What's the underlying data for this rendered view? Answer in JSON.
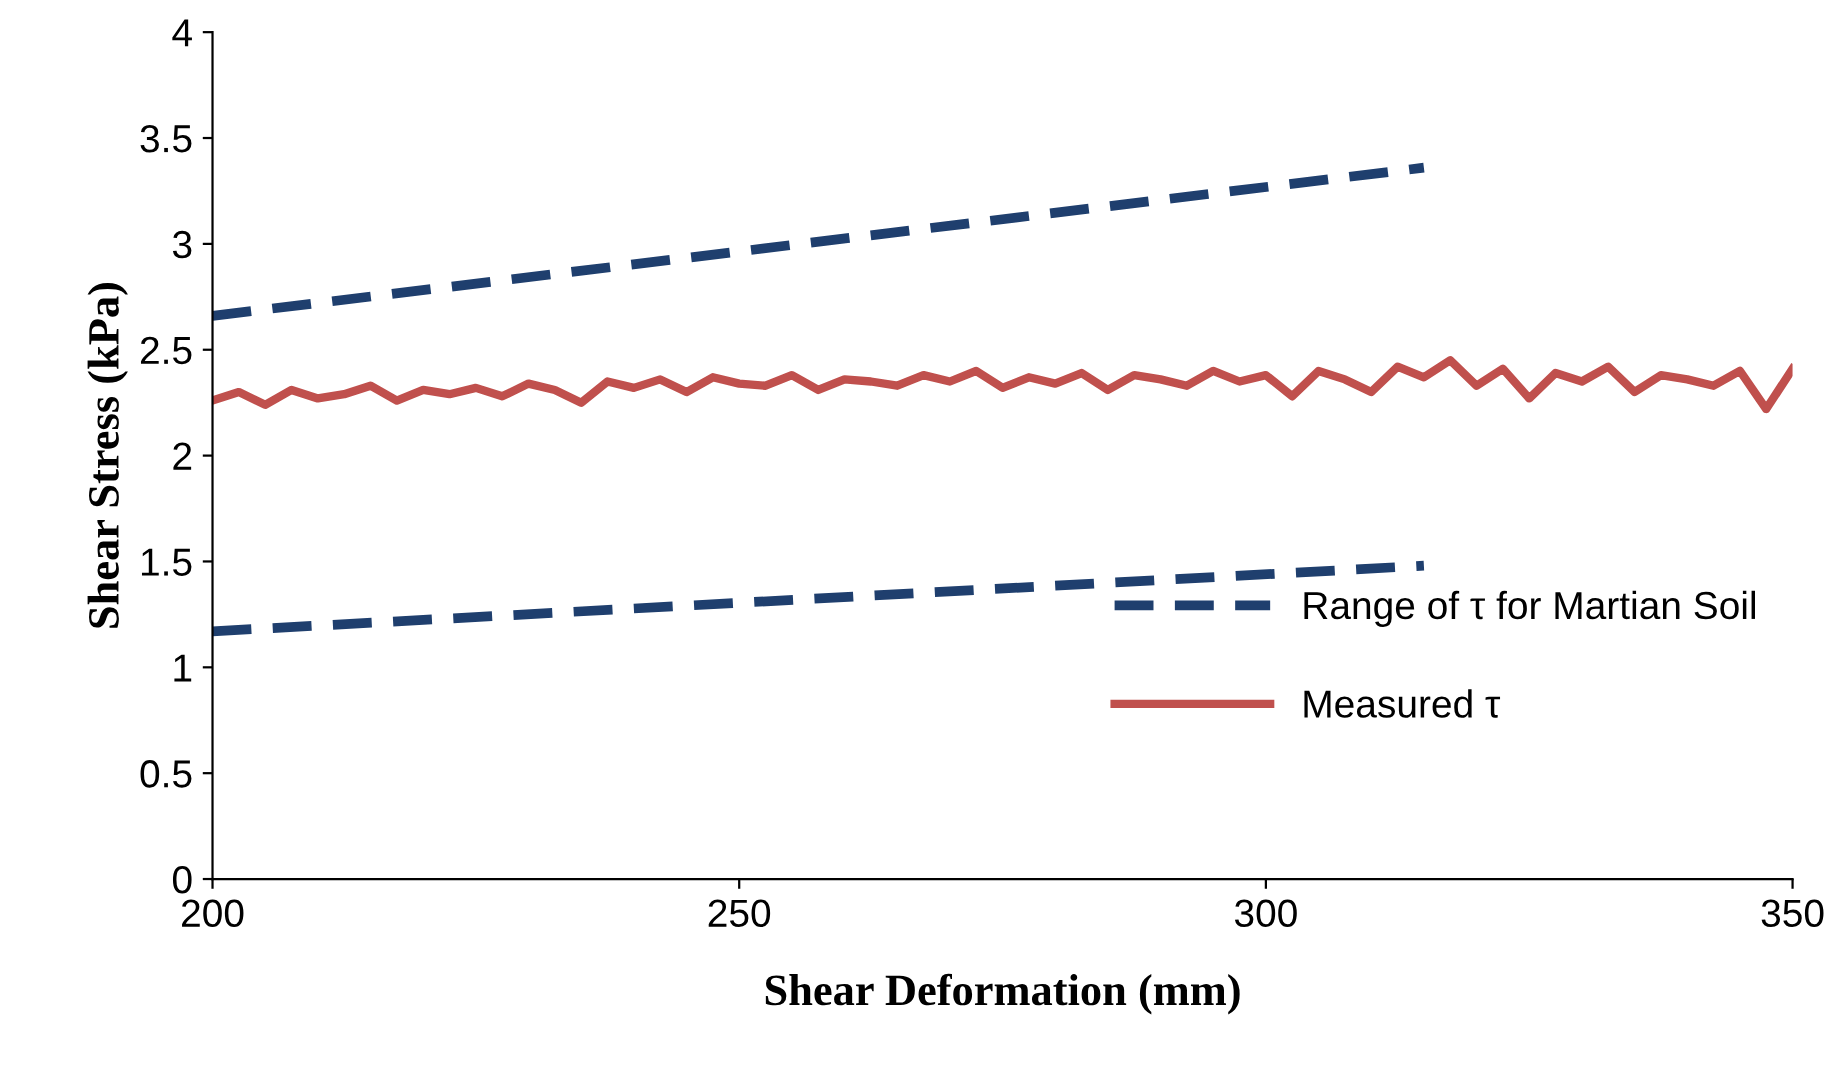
{
  "chart_data": {
    "type": "line",
    "xlabel": "Shear Deformation (mm)",
    "ylabel": "Shear Stress (kPa)",
    "xlim": [
      200,
      350
    ],
    "xticks": [
      200,
      250,
      300,
      350
    ],
    "ylim": [
      0,
      4
    ],
    "yticks": [
      0,
      0.5,
      1,
      1.5,
      2,
      2.5,
      3,
      3.5,
      4
    ],
    "grid": false,
    "legend": "bottom right",
    "series": [
      {
        "name": "Range of τ for Martian Soil",
        "color": "#1f3f6e",
        "line_style": "dashed",
        "x": [
          200,
          315
        ],
        "values": [
          2.66,
          3.36
        ]
      },
      {
        "color": "#1f3f6e",
        "line_style": "dashed",
        "x": [
          200,
          315
        ],
        "values": [
          1.17,
          1.48
        ]
      },
      {
        "name": "Measured τ",
        "color": "#c0504d",
        "line_style": "solid",
        "x": [
          200,
          202.5,
          205,
          207.5,
          210,
          212.5,
          215,
          217.5,
          220,
          222.5,
          225,
          227.5,
          230,
          232.5,
          235,
          237.5,
          240,
          242.5,
          245,
          247.5,
          250,
          252.5,
          255,
          257.5,
          260,
          262.5,
          265,
          267.5,
          270,
          272.5,
          275,
          277.5,
          280,
          282.5,
          285,
          287.5,
          290,
          292.5,
          295,
          297.5,
          300,
          302.5,
          305,
          307.5,
          310,
          312.5,
          315,
          317.5,
          320,
          322.5,
          325,
          327.5,
          330,
          332.5,
          335,
          337.5,
          340,
          342.5,
          345,
          347.5,
          350
        ],
        "values": [
          2.26,
          2.3,
          2.24,
          2.31,
          2.27,
          2.29,
          2.33,
          2.26,
          2.31,
          2.29,
          2.32,
          2.28,
          2.34,
          2.31,
          2.25,
          2.35,
          2.32,
          2.36,
          2.3,
          2.37,
          2.34,
          2.33,
          2.38,
          2.31,
          2.36,
          2.35,
          2.33,
          2.38,
          2.35,
          2.4,
          2.32,
          2.37,
          2.34,
          2.39,
          2.31,
          2.38,
          2.36,
          2.33,
          2.4,
          2.35,
          2.38,
          2.28,
          2.4,
          2.36,
          2.3,
          2.42,
          2.37,
          2.45,
          2.33,
          2.41,
          2.27,
          2.39,
          2.35,
          2.42,
          2.3,
          2.38,
          2.36,
          2.33,
          2.4,
          2.22,
          2.41
        ]
      }
    ]
  }
}
